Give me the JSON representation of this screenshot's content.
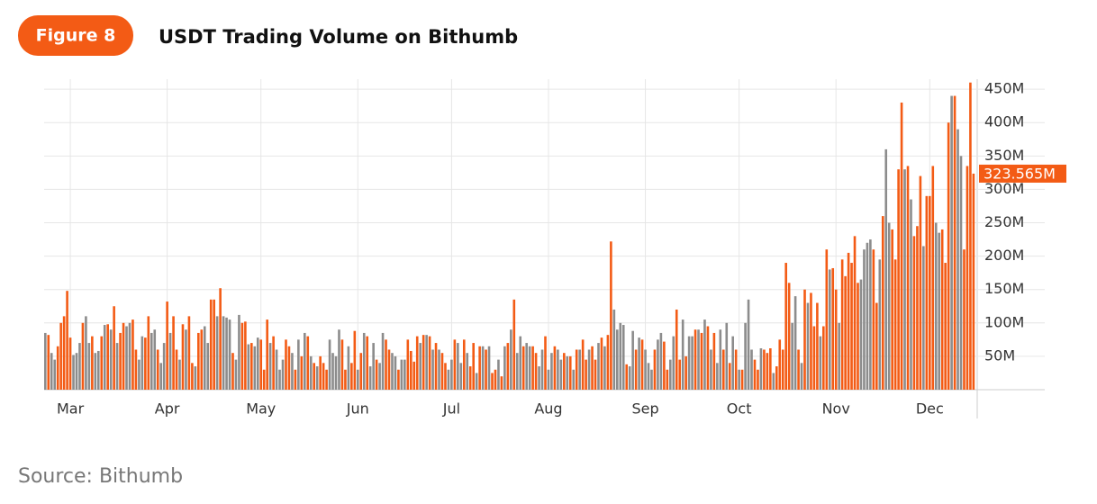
{
  "figure_label": "Figure 8",
  "source": "Source: Bithumb",
  "chart_data": {
    "type": "bar",
    "title": "USDT Trading Volume on Bithumb",
    "ylim": [
      0,
      465
    ],
    "yticks": [
      {
        "value": 50,
        "label": "50M"
      },
      {
        "value": 100,
        "label": "100M"
      },
      {
        "value": 150,
        "label": "150M"
      },
      {
        "value": 200,
        "label": "200M"
      },
      {
        "value": 250,
        "label": "250M"
      },
      {
        "value": 300,
        "label": "300M"
      },
      {
        "value": 350,
        "label": "350M"
      },
      {
        "value": 400,
        "label": "400M"
      },
      {
        "value": 450,
        "label": "450M"
      }
    ],
    "grid": true,
    "last_value_label": "323.565M",
    "categories": [
      null,
      null,
      null,
      null,
      null,
      null,
      null,
      null,
      "Mar",
      null,
      null,
      null,
      null,
      null,
      null,
      null,
      null,
      null,
      null,
      null,
      null,
      null,
      null,
      null,
      null,
      null,
      null,
      null,
      null,
      null,
      null,
      null,
      null,
      null,
      null,
      null,
      null,
      null,
      null,
      "Apr",
      null,
      null,
      null,
      null,
      null,
      null,
      null,
      null,
      null,
      null,
      null,
      null,
      null,
      null,
      null,
      null,
      null,
      null,
      null,
      null,
      null,
      null,
      null,
      null,
      null,
      null,
      null,
      null,
      null,
      "May",
      null,
      null,
      null,
      null,
      null,
      null,
      null,
      null,
      null,
      null,
      null,
      null,
      null,
      null,
      null,
      null,
      null,
      null,
      null,
      null,
      null,
      null,
      null,
      null,
      null,
      null,
      null,
      null,
      null,
      null,
      "Jun",
      null,
      null,
      null,
      null,
      null,
      null,
      null,
      null,
      null,
      null,
      null,
      null,
      null,
      null,
      null,
      null,
      null,
      null,
      null,
      null,
      null,
      null,
      null,
      null,
      null,
      null,
      null,
      null,
      null,
      "Jul",
      null,
      null,
      null,
      null,
      null,
      null,
      null,
      null,
      null,
      null,
      null,
      null,
      null,
      null,
      null,
      null,
      null,
      null,
      null,
      null,
      null,
      null,
      null,
      null,
      null,
      null,
      null,
      null,
      null,
      null,
      "Aug",
      null,
      null,
      null,
      null,
      null,
      null,
      null,
      null,
      null,
      null,
      null,
      null,
      null,
      null,
      null,
      null,
      null,
      null,
      null,
      null,
      null,
      null,
      null,
      null,
      null,
      null,
      null,
      null,
      null,
      null,
      "Sep",
      null,
      null,
      null,
      null,
      null,
      null,
      null,
      null,
      null,
      null,
      null,
      null,
      null,
      null,
      null,
      null,
      null,
      null,
      null,
      null,
      null,
      null,
      null,
      null,
      null,
      null,
      null,
      null,
      null,
      "Oct",
      null,
      null,
      null,
      null,
      null,
      null,
      null,
      null,
      null,
      null,
      null,
      null,
      null,
      null,
      null,
      null,
      null,
      null,
      null,
      null,
      null,
      null,
      null,
      null,
      null,
      null,
      null,
      null,
      null,
      null,
      "Nov",
      null,
      null,
      null,
      null,
      null,
      null,
      null,
      null,
      null,
      null,
      null,
      null,
      null,
      null,
      null,
      null,
      null,
      null,
      null,
      null,
      null,
      null,
      null,
      null,
      null,
      null,
      null,
      null,
      null,
      "Dec",
      null,
      null,
      null,
      null,
      null,
      null,
      null,
      null,
      null,
      null,
      null,
      null,
      null,
      null
    ],
    "values": [
      85,
      82,
      55,
      45,
      65,
      100,
      110,
      148,
      78,
      52,
      55,
      70,
      100,
      110,
      70,
      80,
      55,
      58,
      80,
      97,
      98,
      90,
      125,
      70,
      85,
      100,
      95,
      100,
      105,
      60,
      45,
      80,
      78,
      110,
      85,
      90,
      60,
      40,
      70,
      132,
      85,
      110,
      60,
      45,
      98,
      90,
      110,
      40,
      35,
      85,
      90,
      95,
      70,
      135,
      135,
      110,
      152,
      110,
      108,
      105,
      55,
      45,
      112,
      100,
      102,
      68,
      70,
      65,
      78,
      75,
      30,
      105,
      70,
      80,
      60,
      30,
      45,
      75,
      65,
      55,
      30,
      75,
      50,
      85,
      80,
      50,
      40,
      35,
      50,
      40,
      30,
      75,
      55,
      50,
      90,
      75,
      30,
      65,
      40,
      88,
      30,
      55,
      85,
      80,
      35,
      70,
      45,
      40,
      85,
      75,
      60,
      55,
      50,
      30,
      45,
      45,
      75,
      58,
      42,
      80,
      70,
      82,
      82,
      80,
      60,
      70,
      60,
      55,
      40,
      30,
      45,
      75,
      70,
      40,
      75,
      55,
      35,
      70,
      25,
      65,
      65,
      60,
      65,
      25,
      30,
      45,
      20,
      65,
      70,
      90,
      135,
      55,
      80,
      65,
      70,
      65,
      65,
      55,
      35,
      60,
      80,
      30,
      55,
      65,
      60,
      45,
      55,
      50,
      50,
      30,
      60,
      60,
      75,
      45,
      60,
      65,
      45,
      70,
      78,
      65,
      82,
      222,
      120,
      90,
      100,
      97,
      38,
      35,
      88,
      60,
      78,
      75,
      60,
      40,
      30,
      60,
      75,
      85,
      72,
      30,
      45,
      80,
      120,
      45,
      105,
      50,
      80,
      80,
      90,
      90,
      85,
      105,
      95,
      60,
      85,
      40,
      90,
      60,
      100,
      40,
      80,
      60,
      30,
      30,
      100,
      135,
      60,
      45,
      30,
      62,
      60,
      55,
      62,
      25,
      35,
      75,
      60,
      190,
      160,
      100,
      140,
      60,
      40,
      150,
      130,
      145,
      95,
      130,
      80,
      95,
      210,
      180,
      182,
      150,
      100,
      195,
      170,
      205,
      190,
      230,
      160,
      165,
      210,
      220,
      225,
      210,
      130,
      195,
      260,
      360,
      250,
      240,
      195,
      330,
      430,
      330,
      335,
      285,
      230,
      245,
      320,
      215,
      290,
      290,
      335,
      250,
      235,
      240,
      190,
      400,
      440,
      440,
      390,
      350,
      210,
      335,
      460,
      323.565
    ],
    "colors": [
      "#8c8c8c",
      "#f35b15",
      "#8c8c8c",
      "#8c8c8c",
      "#f35b15",
      "#f35b15",
      "#f35b15",
      "#f35b15",
      "#f35b15",
      "#8c8c8c",
      "#8c8c8c",
      "#8c8c8c",
      "#f35b15",
      "#8c8c8c",
      "#8c8c8c",
      "#f35b15",
      "#8c8c8c",
      "#8c8c8c",
      "#f35b15",
      "#8c8c8c",
      "#f35b15",
      "#8c8c8c",
      "#f35b15",
      "#8c8c8c",
      "#f35b15",
      "#f35b15",
      "#8c8c8c",
      "#8c8c8c",
      "#f35b15",
      "#f35b15",
      "#8c8c8c",
      "#8c8c8c",
      "#f35b15",
      "#f35b15",
      "#8c8c8c",
      "#8c8c8c",
      "#f35b15",
      "#8c8c8c",
      "#8c8c8c",
      "#f35b15",
      "#8c8c8c",
      "#f35b15",
      "#f35b15",
      "#8c8c8c",
      "#f35b15",
      "#8c8c8c",
      "#f35b15",
      "#f35b15",
      "#8c8c8c",
      "#f35b15",
      "#f35b15",
      "#8c8c8c",
      "#8c8c8c",
      "#f35b15",
      "#f35b15",
      "#8c8c8c",
      "#f35b15",
      "#8c8c8c",
      "#8c8c8c",
      "#8c8c8c",
      "#f35b15",
      "#8c8c8c",
      "#8c8c8c",
      "#f35b15",
      "#f35b15",
      "#8c8c8c",
      "#f35b15",
      "#8c8c8c",
      "#8c8c8c",
      "#f35b15",
      "#f35b15",
      "#f35b15",
      "#8c8c8c",
      "#f35b15",
      "#8c8c8c",
      "#8c8c8c",
      "#8c8c8c",
      "#f35b15",
      "#f35b15",
      "#8c8c8c",
      "#f35b15",
      "#8c8c8c",
      "#f35b15",
      "#8c8c8c",
      "#f35b15",
      "#8c8c8c",
      "#f35b15",
      "#8c8c8c",
      "#f35b15",
      "#f35b15",
      "#f35b15",
      "#8c8c8c",
      "#8c8c8c",
      "#8c8c8c",
      "#8c8c8c",
      "#f35b15",
      "#f35b15",
      "#8c8c8c",
      "#f35b15",
      "#f35b15",
      "#8c8c8c",
      "#f35b15",
      "#8c8c8c",
      "#f35b15",
      "#8c8c8c",
      "#8c8c8c",
      "#f35b15",
      "#8c8c8c",
      "#8c8c8c",
      "#f35b15",
      "#f35b15",
      "#8c8c8c",
      "#8c8c8c",
      "#f35b15",
      "#8c8c8c",
      "#8c8c8c",
      "#f35b15",
      "#f35b15",
      "#f35b15",
      "#f35b15",
      "#8c8c8c",
      "#f35b15",
      "#8c8c8c",
      "#f35b15",
      "#8c8c8c",
      "#f35b15",
      "#8c8c8c",
      "#f35b15",
      "#f35b15",
      "#8c8c8c",
      "#8c8c8c",
      "#f35b15",
      "#8c8c8c",
      "#8c8c8c",
      "#f35b15",
      "#8c8c8c",
      "#f35b15",
      "#f35b15",
      "#8c8c8c",
      "#f35b15",
      "#8c8c8c",
      "#f35b15",
      "#8c8c8c",
      "#f35b15",
      "#f35b15",
      "#8c8c8c",
      "#f35b15",
      "#8c8c8c",
      "#f35b15",
      "#8c8c8c",
      "#f35b15",
      "#8c8c8c",
      "#8c8c8c",
      "#f35b15",
      "#8c8c8c",
      "#8c8c8c",
      "#f35b15",
      "#f35b15",
      "#8c8c8c",
      "#8c8c8c",
      "#f35b15",
      "#8c8c8c",
      "#8c8c8c",
      "#f35b15",
      "#8c8c8c",
      "#8c8c8c",
      "#f35b15",
      "#8c8c8c",
      "#f35b15",
      "#8c8c8c",
      "#f35b15",
      "#8c8c8c",
      "#f35b15",
      "#f35b15",
      "#8c8c8c",
      "#f35b15",
      "#f35b15",
      "#8c8c8c",
      "#f35b15",
      "#8c8c8c",
      "#f35b15",
      "#f35b15",
      "#8c8c8c",
      "#8c8c8c",
      "#8c8c8c",
      "#8c8c8c",
      "#f35b15",
      "#8c8c8c",
      "#8c8c8c",
      "#f35b15",
      "#8c8c8c",
      "#f35b15",
      "#8c8c8c",
      "#8c8c8c",
      "#8c8c8c",
      "#f35b15",
      "#8c8c8c",
      "#8c8c8c",
      "#f35b15",
      "#f35b15",
      "#8c8c8c",
      "#8c8c8c",
      "#f35b15",
      "#f35b15",
      "#8c8c8c",
      "#f35b15",
      "#8c8c8c",
      "#8c8c8c",
      "#f35b15",
      "#8c8c8c",
      "#f35b15",
      "#8c8c8c",
      "#f35b15",
      "#8c8c8c",
      "#f35b15",
      "#8c8c8c",
      "#8c8c8c",
      "#f35b15",
      "#8c8c8c",
      "#f35b15",
      "#8c8c8c",
      "#f35b15",
      "#8c8c8c",
      "#f35b15",
      "#8c8c8c",
      "#8c8c8c",
      "#8c8c8c",
      "#f35b15",
      "#f35b15",
      "#8c8c8c",
      "#f35b15",
      "#f35b15",
      "#f35b15",
      "#8c8c8c",
      "#f35b15",
      "#f35b15",
      "#f35b15",
      "#f35b15",
      "#f35b15",
      "#8c8c8c",
      "#8c8c8c",
      "#f35b15",
      "#8c8c8c",
      "#f35b15",
      "#8c8c8c",
      "#f35b15",
      "#f35b15",
      "#f35b15",
      "#8c8c8c",
      "#f35b15",
      "#f35b15",
      "#8c8c8c",
      "#f35b15",
      "#f35b15",
      "#8c8c8c",
      "#f35b15",
      "#f35b15",
      "#f35b15",
      "#f35b15",
      "#f35b15",
      "#f35b15",
      "#8c8c8c",
      "#8c8c8c",
      "#8c8c8c",
      "#8c8c8c",
      "#f35b15",
      "#f35b15",
      "#8c8c8c",
      "#f35b15",
      "#8c8c8c",
      "#8c8c8c",
      "#f35b15",
      "#f35b15",
      "#f35b15",
      "#f35b15",
      "#8c8c8c",
      "#f35b15",
      "#8c8c8c",
      "#f35b15",
      "#f35b15",
      "#f35b15",
      "#8c8c8c",
      "#f35b15",
      "#f35b15",
      "#f35b15",
      "#8c8c8c",
      "#8c8c8c",
      "#f35b15",
      "#f35b15",
      "#f35b15",
      "#8c8c8c",
      "#f35b15",
      "#8c8c8c",
      "#8c8c8c",
      "#f35b15",
      "#f35b15",
      "#f35b15",
      "#f35b15"
    ]
  }
}
